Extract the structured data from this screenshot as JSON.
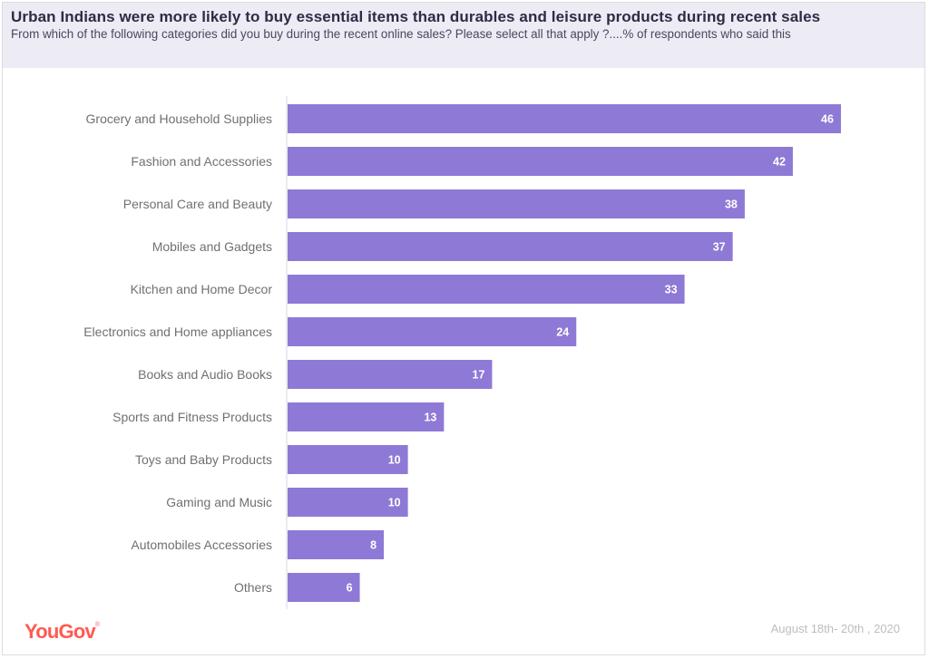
{
  "header": {
    "title": "Urban Indians were more likely to buy essential items than durables and leisure products during  recent  sales",
    "subtitle": "From which of the following categories did you buy during the recent online sales? Please select all that apply ?....% of respondents who said this"
  },
  "footer": {
    "logo": "YouGov",
    "logo_mark": "®",
    "date": "August 18th- 20th , 2020"
  },
  "colors": {
    "bar": "#8e79d6",
    "header_bg": "#edebf4",
    "logo": "#ff5a52"
  },
  "chart_data": {
    "type": "bar",
    "orientation": "horizontal",
    "title": "Urban Indians were more likely to buy essential items than durables and leisure products during  recent  sales",
    "subtitle": "From which of the following categories did you buy during the recent online sales? Please select all that apply ?....% of respondents who said this",
    "xlabel": "",
    "ylabel": "",
    "unit": "% of respondents",
    "xlim": [
      0,
      50
    ],
    "grid": false,
    "legend": "none",
    "categories": [
      "Grocery and Household Supplies",
      "Fashion and Accessories",
      "Personal Care and Beauty",
      "Mobiles and Gadgets",
      "Kitchen and Home Decor",
      "Electronics and Home appliances",
      "Books and Audio Books",
      "Sports and Fitness Products",
      "Toys and Baby Products",
      "Gaming and Music",
      "Automobiles Accessories",
      "Others"
    ],
    "values": [
      46,
      42,
      38,
      37,
      33,
      24,
      17,
      13,
      10,
      10,
      8,
      6
    ],
    "data_labels": [
      "46",
      "42",
      "38",
      "37",
      "33",
      "24",
      "17",
      "13",
      "10",
      "10",
      "8",
      "6"
    ]
  }
}
